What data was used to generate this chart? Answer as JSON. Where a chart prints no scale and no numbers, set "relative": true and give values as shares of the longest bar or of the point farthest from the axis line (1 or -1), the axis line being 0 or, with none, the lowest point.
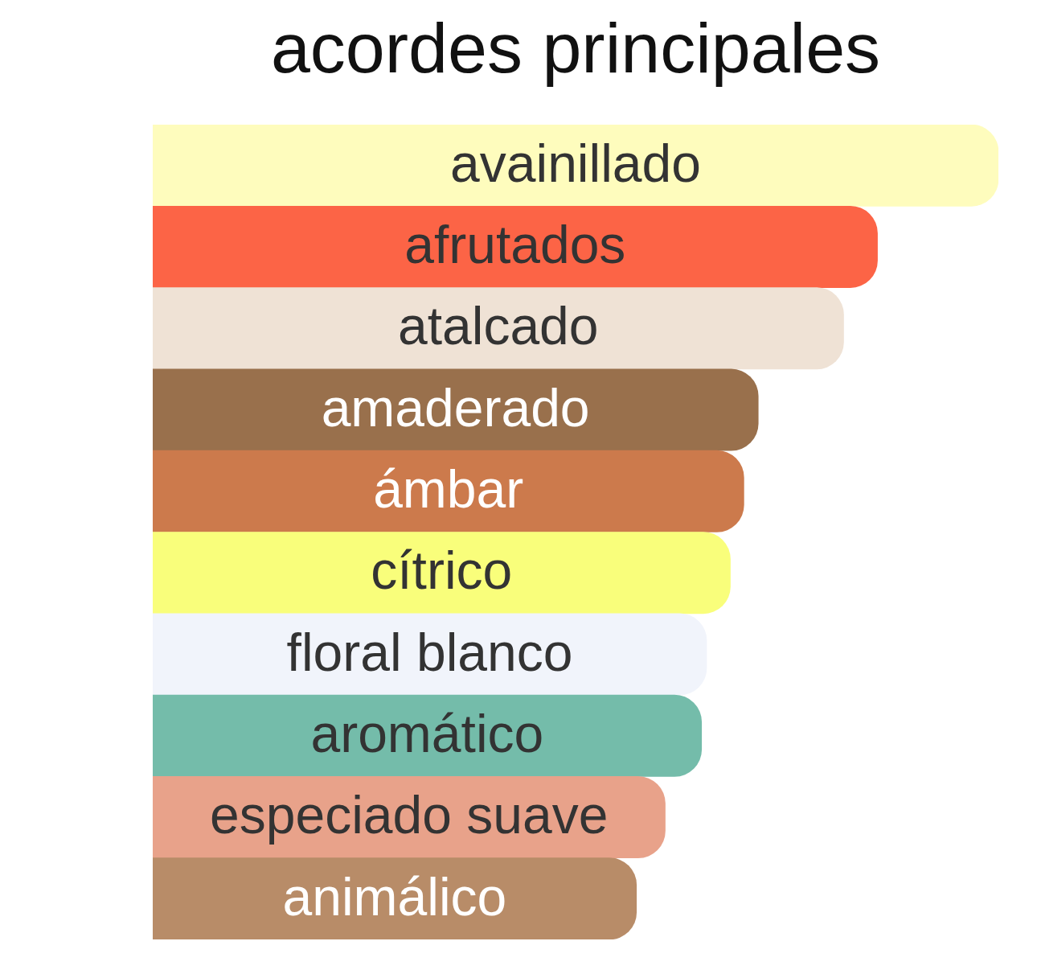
{
  "chart_data": {
    "type": "bar",
    "orientation": "horizontal",
    "relative": true,
    "title": "acordes principales",
    "categories": [
      "avainillado",
      "afrutados",
      "atalcado",
      "amaderado",
      "ámbar",
      "cítrico",
      "floral blanco",
      "aromático",
      "especiado suave",
      "animálico"
    ],
    "values": [
      1,
      0.857,
      0.817,
      0.716,
      0.699,
      0.683,
      0.655,
      0.649,
      0.606,
      0.572
    ],
    "colors": [
      "#fefcbd",
      "#fc6446",
      "#efe2d5",
      "#99704c",
      "#cc7a4c",
      "#f9fe7b",
      "#f1f4fb",
      "#74bcaa",
      "#e8a28a",
      "#b88c68"
    ]
  }
}
